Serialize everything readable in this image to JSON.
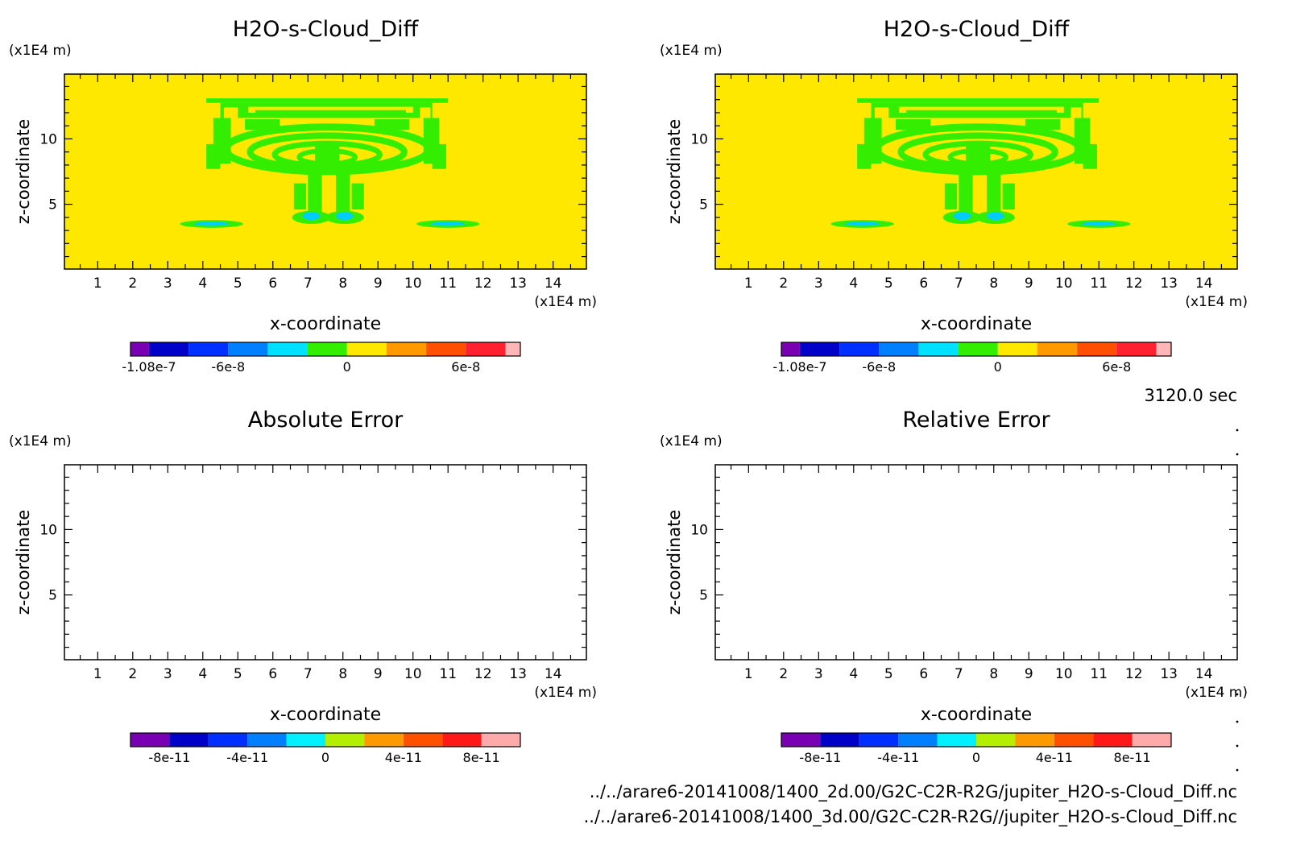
{
  "time_label": "3120.0 sec",
  "file_lines": [
    "../../arare6-20141008/1400_2d.00/G2C-C2R-R2G/jupiter_H2O-s-Cloud_Diff.nc",
    "../../arare6-20141008/1400_3d.00/G2C-C2R-R2G//jupiter_H2O-s-Cloud_Diff.nc"
  ],
  "chart_data": [
    {
      "type": "heatmap",
      "title": "H2O-s-Cloud_Diff",
      "xlabel": "x-coordinate",
      "ylabel": "z-coordinate",
      "x_unit": "(x1E4 m)",
      "y_unit": "(x1E4 m)",
      "xlim": [
        0.05,
        14.95
      ],
      "ylim": [
        0.05,
        14.95
      ],
      "x_ticks": [
        1,
        2,
        3,
        4,
        5,
        6,
        7,
        8,
        9,
        10,
        11,
        12,
        13,
        14
      ],
      "x_tick_labels": [
        "1",
        "2",
        "3",
        "4",
        "5",
        "6",
        "7",
        "8",
        "9",
        "10",
        "11",
        "12",
        "13",
        "14"
      ],
      "y_ticks": [
        5,
        10
      ],
      "y_tick_labels": [
        "5",
        "10"
      ],
      "field_colors": {
        "background": "#ffe800",
        "cloud": "#33ee00",
        "accent": "#00ccff"
      },
      "colorbar": {
        "colors": [
          "#7a00b4",
          "#0000c8",
          "#0030ff",
          "#0080ff",
          "#00e0ff",
          "#33ee00",
          "#ffe800",
          "#ff9900",
          "#ff4f00",
          "#ff2030",
          "#ffb6b6"
        ],
        "tick_labels": [
          "-1.08e-7",
          "-6e-8",
          "0",
          "6e-8"
        ]
      }
    },
    {
      "type": "heatmap",
      "title": "H2O-s-Cloud_Diff",
      "xlabel": "x-coordinate",
      "ylabel": "z-coordinate",
      "x_unit": "(x1E4 m)",
      "y_unit": "(x1E4 m)",
      "xlim": [
        0.05,
        14.95
      ],
      "ylim": [
        0.05,
        14.95
      ],
      "x_ticks": [
        1,
        2,
        3,
        4,
        5,
        6,
        7,
        8,
        9,
        10,
        11,
        12,
        13,
        14
      ],
      "x_tick_labels": [
        "1",
        "2",
        "3",
        "4",
        "5",
        "6",
        "7",
        "8",
        "9",
        "10",
        "11",
        "12",
        "13",
        "14"
      ],
      "y_ticks": [
        5,
        10
      ],
      "y_tick_labels": [
        "5",
        "10"
      ],
      "field_colors": {
        "background": "#ffe800",
        "cloud": "#33ee00",
        "accent": "#00ccff"
      },
      "colorbar": {
        "colors": [
          "#7a00b4",
          "#0000c8",
          "#0030ff",
          "#0080ff",
          "#00e0ff",
          "#33ee00",
          "#ffe800",
          "#ff9900",
          "#ff4f00",
          "#ff2030",
          "#ffb6b6"
        ],
        "tick_labels": [
          "-1.08e-7",
          "-6e-8",
          "0",
          "6e-8"
        ]
      }
    },
    {
      "type": "heatmap",
      "title": "Absolute Error",
      "xlabel": "x-coordinate",
      "ylabel": "z-coordinate",
      "x_unit": "(x1E4 m)",
      "y_unit": "(x1E4 m)",
      "xlim": [
        0.05,
        14.95
      ],
      "ylim": [
        0.05,
        14.95
      ],
      "x_ticks": [
        1,
        2,
        3,
        4,
        5,
        6,
        7,
        8,
        9,
        10,
        11,
        12,
        13,
        14
      ],
      "x_tick_labels": [
        "1",
        "2",
        "3",
        "4",
        "5",
        "6",
        "7",
        "8",
        "9",
        "10",
        "11",
        "12",
        "13",
        "14"
      ],
      "y_ticks": [
        5,
        10
      ],
      "y_tick_labels": [
        "5",
        "10"
      ],
      "field_colors": {
        "background": "#ffffff"
      },
      "colorbar": {
        "colors": [
          "#7a00b4",
          "#0000c8",
          "#0030ff",
          "#0080ff",
          "#00f0ff",
          "#b4ee00",
          "#ff9900",
          "#ff5000",
          "#ff1818",
          "#ffaaaa"
        ],
        "tick_labels": [
          "-8e-11",
          "-4e-11",
          "0",
          "4e-11",
          "8e-11"
        ]
      }
    },
    {
      "type": "heatmap",
      "title": "Relative Error",
      "xlabel": "x-coordinate",
      "ylabel": "z-coordinate",
      "x_unit": "(x1E4 m)",
      "y_unit": "(x1E4 m)",
      "xlim": [
        0.05,
        14.95
      ],
      "ylim": [
        0.05,
        14.95
      ],
      "x_ticks": [
        1,
        2,
        3,
        4,
        5,
        6,
        7,
        8,
        9,
        10,
        11,
        12,
        13,
        14
      ],
      "x_tick_labels": [
        "1",
        "2",
        "3",
        "4",
        "5",
        "6",
        "7",
        "8",
        "9",
        "10",
        "11",
        "12",
        "13",
        "14"
      ],
      "y_ticks": [
        5,
        10
      ],
      "y_tick_labels": [
        "5",
        "10"
      ],
      "field_colors": {
        "background": "#ffffff"
      },
      "colorbar": {
        "colors": [
          "#7a00b4",
          "#0000c8",
          "#0030ff",
          "#0080ff",
          "#00f0ff",
          "#b4ee00",
          "#ff9900",
          "#ff5000",
          "#ff1818",
          "#ffaaaa"
        ],
        "tick_labels": [
          "-8e-11",
          "-4e-11",
          "0",
          "4e-11",
          "8e-11"
        ]
      }
    }
  ]
}
